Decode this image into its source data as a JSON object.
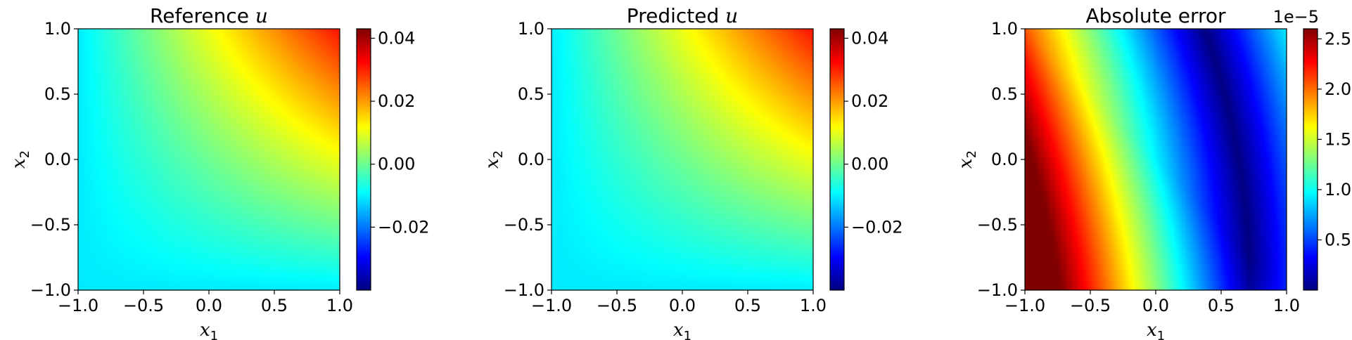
{
  "chart_data": [
    {
      "type": "heatmap",
      "title": "Reference u",
      "title_main": "Reference ",
      "title_var": "u",
      "xlabel": "x1",
      "ylabel": "x2",
      "xlim": [
        -1.0,
        1.0
      ],
      "ylim": [
        -1.0,
        1.0
      ],
      "xticks": [
        "−1.0",
        "−0.5",
        "0.0",
        "0.5",
        "1.0"
      ],
      "yticks": [
        "−1.0",
        "−0.5",
        "0.0",
        "0.5",
        "1.0"
      ],
      "colormap": "jet",
      "field": "reference",
      "colorbar": {
        "range": [
          -0.04,
          0.043
        ],
        "ticks": [
          {
            "value": 0.04,
            "label": "0.04"
          },
          {
            "value": 0.02,
            "label": "0.02"
          },
          {
            "value": 0.0,
            "label": "0.00"
          },
          {
            "value": -0.02,
            "label": "−0.02"
          }
        ],
        "offset_text": ""
      }
    },
    {
      "type": "heatmap",
      "title": "Predicted u",
      "title_main": "Predicted ",
      "title_var": "u",
      "xlabel": "x1",
      "ylabel": "x2",
      "xlim": [
        -1.0,
        1.0
      ],
      "ylim": [
        -1.0,
        1.0
      ],
      "xticks": [
        "−1.0",
        "−0.5",
        "0.0",
        "0.5",
        "1.0"
      ],
      "yticks": [
        "−1.0",
        "−0.5",
        "0.0",
        "0.5",
        "1.0"
      ],
      "colormap": "jet",
      "field": "predicted",
      "colorbar": {
        "range": [
          -0.04,
          0.043
        ],
        "ticks": [
          {
            "value": 0.04,
            "label": "0.04"
          },
          {
            "value": 0.02,
            "label": "0.02"
          },
          {
            "value": 0.0,
            "label": "0.00"
          },
          {
            "value": -0.02,
            "label": "−0.02"
          }
        ],
        "offset_text": ""
      }
    },
    {
      "type": "heatmap",
      "title": "Absolute error",
      "title_main": "Absolute error",
      "title_var": "",
      "xlabel": "x1",
      "ylabel": "x2",
      "xlim": [
        -1.0,
        1.0
      ],
      "ylim": [
        -1.0,
        1.0
      ],
      "xticks": [
        "−1.0",
        "−0.5",
        "0.0",
        "0.5",
        "1.0"
      ],
      "yticks": [
        "−1.0",
        "−0.5",
        "0.0",
        "0.5",
        "1.0"
      ],
      "colormap": "jet",
      "field": "error",
      "colorbar": {
        "range": [
          0.0,
          2.6
        ],
        "ticks": [
          {
            "value": 2.5,
            "label": "2.5"
          },
          {
            "value": 2.0,
            "label": "2.0"
          },
          {
            "value": 1.5,
            "label": "1.5"
          },
          {
            "value": 1.0,
            "label": "1.0"
          },
          {
            "value": 0.5,
            "label": "0.5"
          }
        ],
        "offset_text": "1e−5"
      }
    }
  ]
}
